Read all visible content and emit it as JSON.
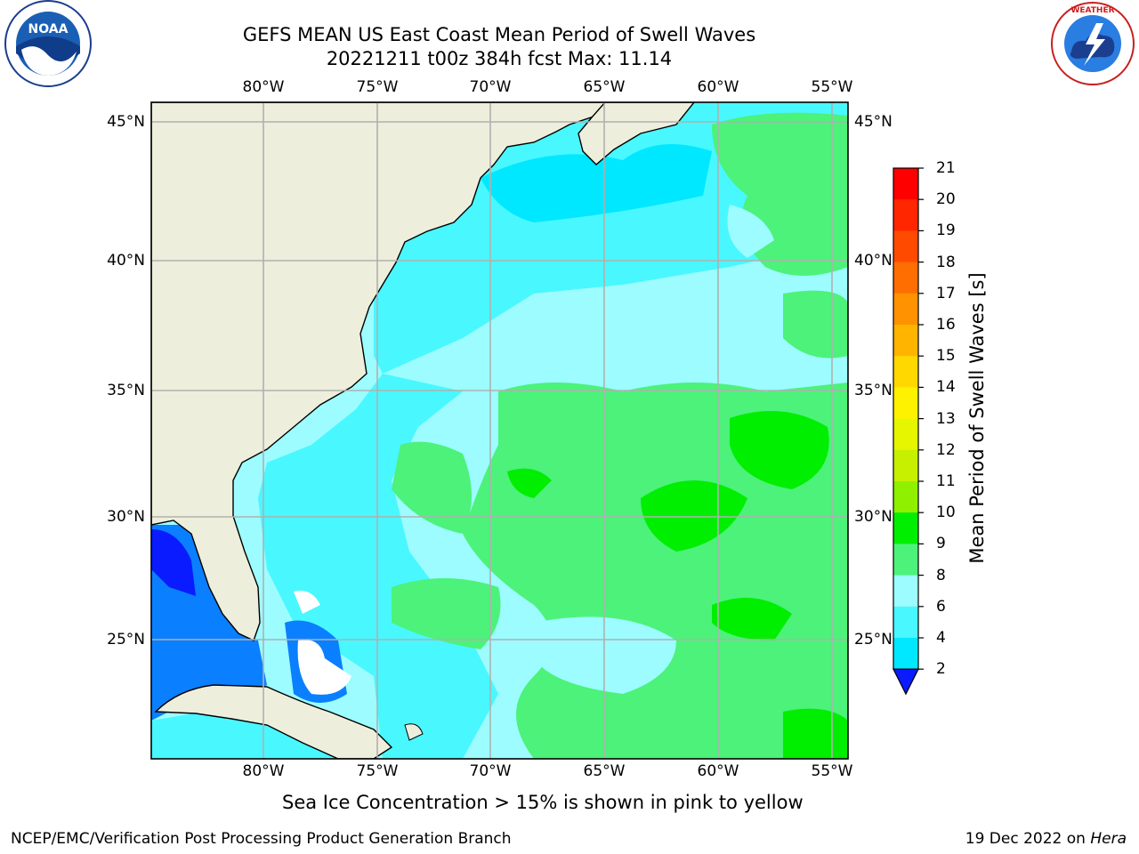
{
  "header": {
    "title_line1": "GEFS MEAN US East Coast Mean Period of Swell Waves",
    "title_line2": "20221211 t00z 384h fcst   Max: 11.14"
  },
  "map": {
    "lon_labels": [
      "80°W",
      "75°W",
      "70°W",
      "65°W",
      "60°W",
      "55°W"
    ],
    "lat_labels": [
      "45°N",
      "40°N",
      "35°N",
      "30°N",
      "25°N"
    ],
    "colors": {
      "land": "#eeeedc",
      "grid": "#b0b0b0",
      "unmapped": "#ffffff"
    }
  },
  "colorbar": {
    "label": "Mean Period of Swell Waves [s]",
    "ticks": [
      "21",
      "20",
      "19",
      "18",
      "17",
      "16",
      "15",
      "14",
      "13",
      "12",
      "11",
      "10",
      "9",
      "8",
      "6",
      "4",
      "2"
    ],
    "colors": [
      "#ff0000",
      "#ff2600",
      "#ff4a00",
      "#ff6e00",
      "#ff9200",
      "#ffb400",
      "#ffd800",
      "#fff200",
      "#e6f500",
      "#c6f000",
      "#8ff000",
      "#00ee00",
      "#4cf27a",
      "#9dfcff",
      "#49f7ff",
      "#00e8ff",
      "#0a7fff",
      "#0a1bff"
    ]
  },
  "note": "Sea Ice Concentration > 15% is shown in pink to yellow",
  "footer": {
    "left": "NCEP/EMC/Verification Post Processing Product Generation Branch",
    "right_prefix": "19 Dec 2022 on",
    "right_machine": "Hera"
  },
  "logos": {
    "left": "NOAA",
    "right": "NATIONAL WEATHER SERVICE",
    "left_ring_text": "NATIONAL OCEANIC AND ATMOSPHERIC ADMINISTRATION"
  }
}
